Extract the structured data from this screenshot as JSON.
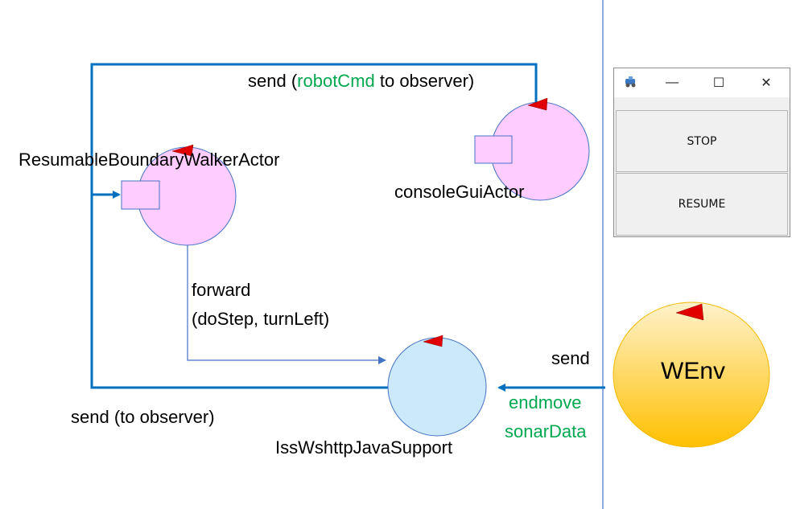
{
  "actors": {
    "walker": "ResumableBoundaryWalkerActor",
    "console": "consoleGuiActor",
    "support": "IssWshttpJavaSupport",
    "wenv": "WEnv"
  },
  "labels": {
    "send_prefix": "send (",
    "robot_cmd": "robotCmd",
    "send_suffix": " to observer)",
    "forward": "forward",
    "forward_args": "(doStep, turnLeft)",
    "send_to_observer": "send (to observer)",
    "send": "send",
    "endmove": "endmove",
    "sonar_data": "sonarData"
  },
  "window": {
    "minimize": "—",
    "maximize": "☐",
    "close": "✕",
    "stop_label": "STOP",
    "resume_label": "RESUME"
  },
  "colors": {
    "arrow_blue": "#0070c0",
    "thin_blue": "#4472c4",
    "pink_fill": "#ffccff",
    "light_blue_fill": "#cce8fb",
    "orange_top": "#fff2cc",
    "orange_bottom": "#ffc000",
    "green_text": "#00a84f",
    "red_marker": "#e00000"
  }
}
